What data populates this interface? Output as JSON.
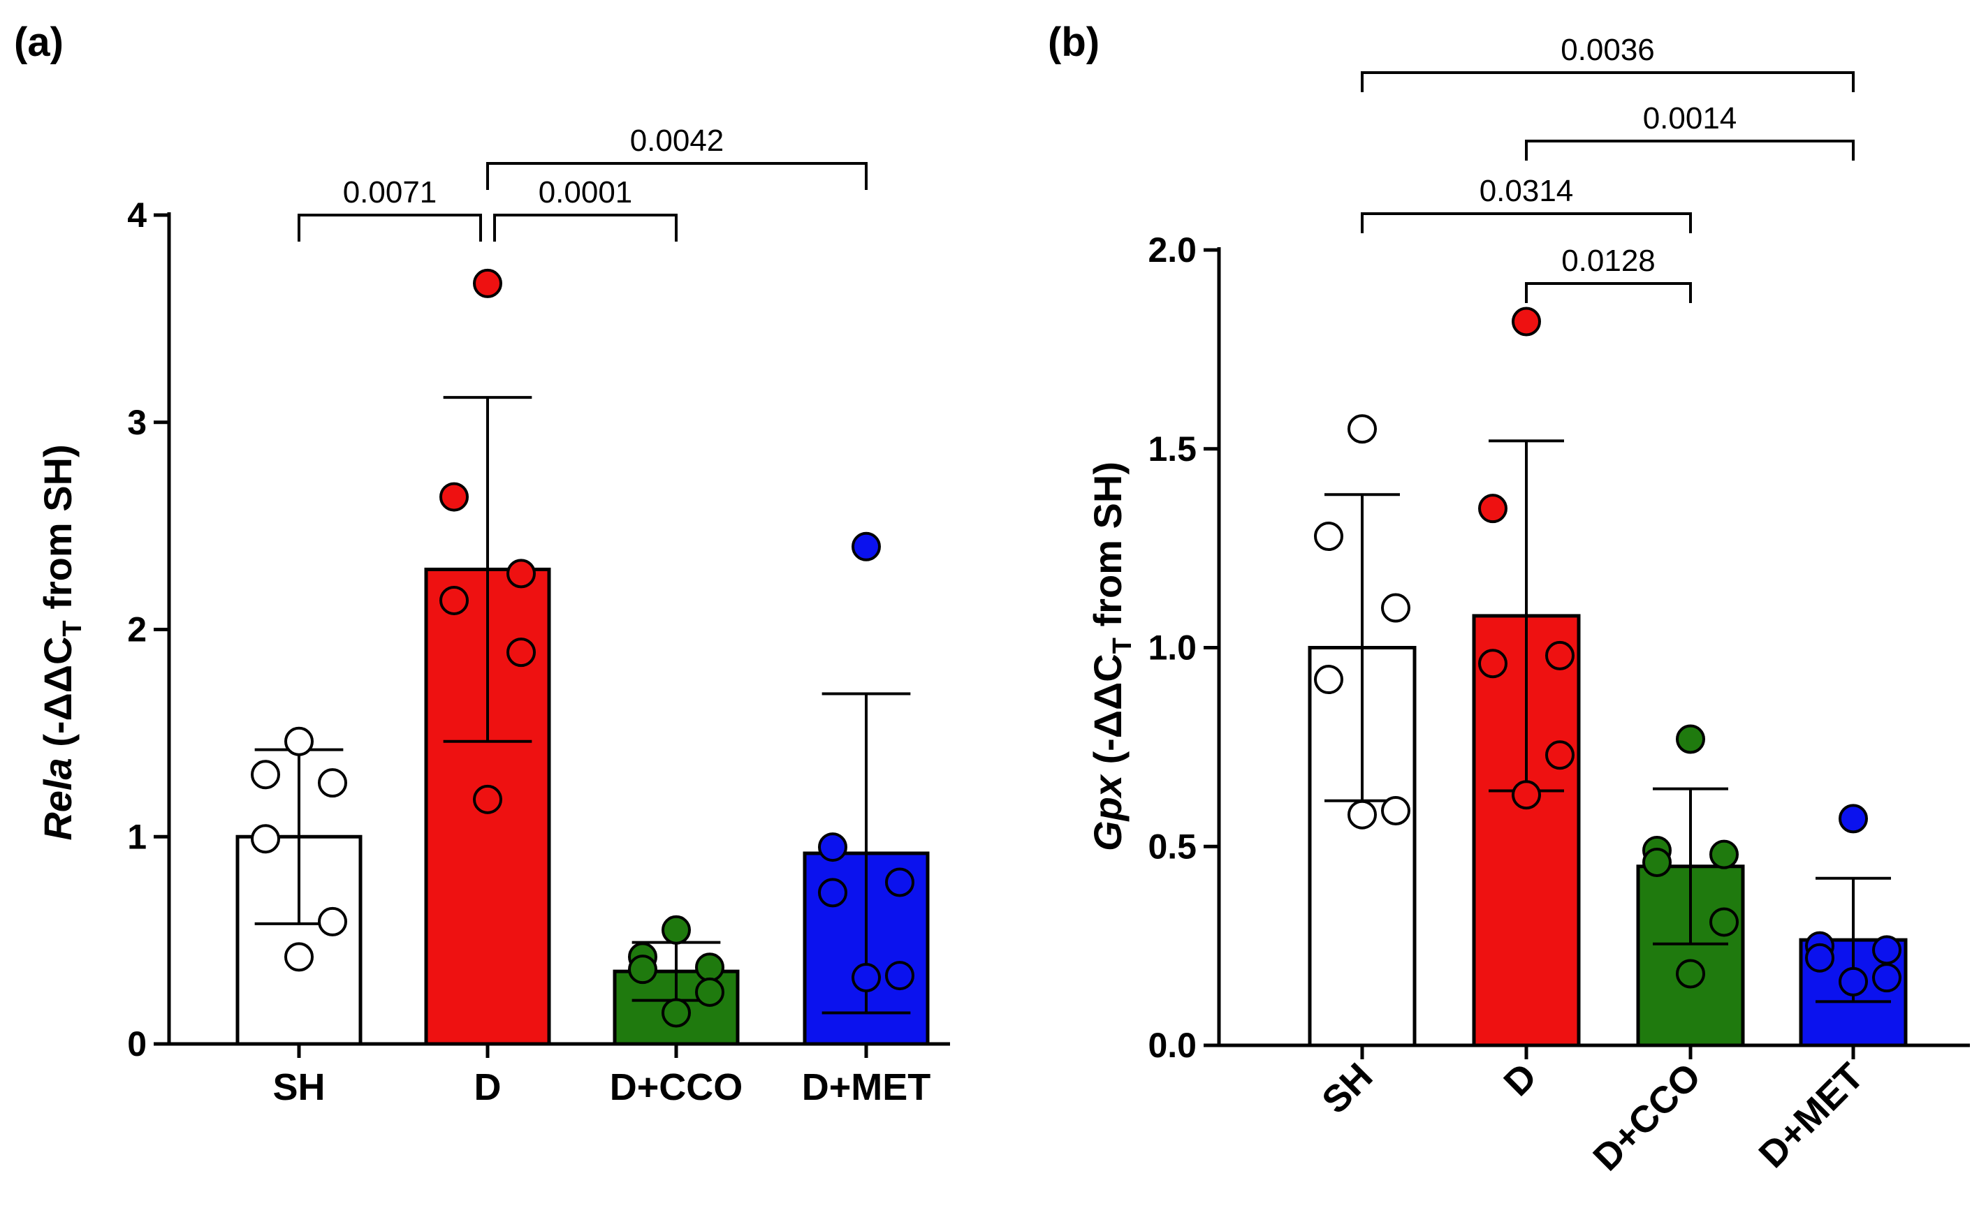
{
  "chart_data": [
    {
      "type": "bar",
      "panel_label": "(a)",
      "categories": [
        "SH",
        "D",
        "D+CCO",
        "D+MET"
      ],
      "colors": [
        "#ffffff",
        "#ee1111",
        "#1f7a0e",
        "#0b12ee"
      ],
      "ylim": [
        0,
        4
      ],
      "yticks": [
        0,
        1,
        2,
        3,
        4
      ],
      "ytick_labels": [
        "0",
        "1",
        "2",
        "3",
        "4"
      ],
      "ylabel": {
        "gene": "Rela",
        "prefix": " (-ΔΔC",
        "subscript": "T",
        "suffix": " from SH)"
      },
      "means": [
        1.0,
        2.29,
        0.35,
        0.92
      ],
      "sd": [
        0.42,
        0.83,
        0.14,
        0.77
      ],
      "points": [
        [
          1.46,
          1.3,
          1.26,
          0.99,
          0.59,
          0.42
        ],
        [
          3.67,
          2.64,
          2.27,
          2.14,
          1.89,
          1.18
        ],
        [
          0.55,
          0.42,
          0.37,
          0.36,
          0.25,
          0.15
        ],
        [
          2.4,
          0.95,
          0.78,
          0.73,
          0.33,
          0.32
        ]
      ],
      "comparisons": [
        {
          "from": 0,
          "to": 1,
          "label": "0.0071",
          "level": 0
        },
        {
          "from": 1,
          "to": 2,
          "label": "0.0001",
          "level": 0
        },
        {
          "from": 1,
          "to": 3,
          "label": "0.0042",
          "level": 1
        }
      ]
    },
    {
      "type": "bar",
      "panel_label": "(b)",
      "categories": [
        "SH",
        "D",
        "D+CCO",
        "D+MET"
      ],
      "colors": [
        "#ffffff",
        "#ee1111",
        "#1f7a0e",
        "#0b12ee"
      ],
      "ylim": [
        0,
        2.0
      ],
      "yticks": [
        0,
        0.5,
        1.0,
        1.5,
        2.0
      ],
      "ytick_labels": [
        "0.0",
        "0.5",
        "1.0",
        "1.5",
        "2.0"
      ],
      "ylabel": {
        "gene": "Gpx",
        "prefix": " (-ΔΔC",
        "subscript": "T",
        "suffix": " from SH)"
      },
      "means": [
        1.0,
        1.08,
        0.45,
        0.265
      ],
      "sd": [
        0.385,
        0.44,
        0.195,
        0.155
      ],
      "points": [
        [
          1.55,
          1.28,
          1.1,
          0.92,
          0.59,
          0.58
        ],
        [
          1.82,
          1.35,
          0.98,
          0.96,
          0.73,
          0.63
        ],
        [
          0.77,
          0.49,
          0.48,
          0.46,
          0.31,
          0.18
        ],
        [
          0.57,
          0.25,
          0.24,
          0.22,
          0.17,
          0.16
        ]
      ],
      "comparisons": [
        {
          "from": 1,
          "to": 2,
          "label": "0.0128",
          "level": 0
        },
        {
          "from": 0,
          "to": 2,
          "label": "0.0314",
          "level": 1
        },
        {
          "from": 1,
          "to": 3,
          "label": "0.0014",
          "level": 2
        },
        {
          "from": 0,
          "to": 3,
          "label": "0.0036",
          "level": 3
        }
      ]
    }
  ]
}
